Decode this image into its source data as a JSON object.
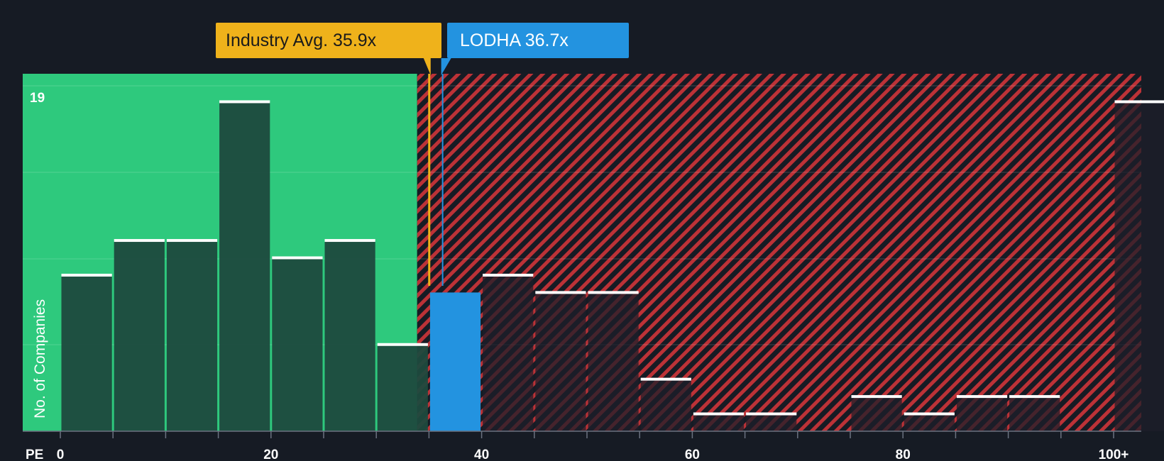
{
  "chart_data": {
    "type": "bar",
    "title": "",
    "xlabel": "PE",
    "ylabel": "No. of Companies",
    "ylim": [
      0,
      20
    ],
    "y_max_label": "19",
    "bin_width": 5,
    "x_ticks": [
      {
        "value": 0,
        "label": "0"
      },
      {
        "value": 20,
        "label": "20"
      },
      {
        "value": 40,
        "label": "40"
      },
      {
        "value": 60,
        "label": "60"
      },
      {
        "value": 80,
        "label": "80"
      },
      {
        "value": 100,
        "label": "100+"
      }
    ],
    "bins": [
      {
        "start": 0,
        "count": 9
      },
      {
        "start": 5,
        "count": 11
      },
      {
        "start": 10,
        "count": 11
      },
      {
        "start": 15,
        "count": 19
      },
      {
        "start": 20,
        "count": 10
      },
      {
        "start": 25,
        "count": 11
      },
      {
        "start": 30,
        "count": 5
      },
      {
        "start": 35,
        "count": 8,
        "highlight": true
      },
      {
        "start": 40,
        "count": 9
      },
      {
        "start": 45,
        "count": 8
      },
      {
        "start": 50,
        "count": 8
      },
      {
        "start": 55,
        "count": 3
      },
      {
        "start": 60,
        "count": 1
      },
      {
        "start": 65,
        "count": 1
      },
      {
        "start": 70,
        "count": 0
      },
      {
        "start": 75,
        "count": 2
      },
      {
        "start": 80,
        "count": 1
      },
      {
        "start": 85,
        "count": 2
      },
      {
        "start": 90,
        "count": 2
      },
      {
        "start": 95,
        "count": 0
      },
      {
        "start": 100,
        "count": 19
      }
    ],
    "industry_avg": {
      "value": 35.9,
      "label": "Industry Avg. 35.9x"
    },
    "company": {
      "name": "LODHA",
      "value": 36.7,
      "label": "LODHA 36.7x"
    },
    "colors": {
      "background": "#161b24",
      "fair_zone": "#2ec97d",
      "bar_fair": "#1e4a3e",
      "bar_over": "#1d1f2a",
      "hatch": "#c53338",
      "highlight": "#2393e0",
      "industry": "#efb21b",
      "cap": "#ffffff"
    }
  }
}
